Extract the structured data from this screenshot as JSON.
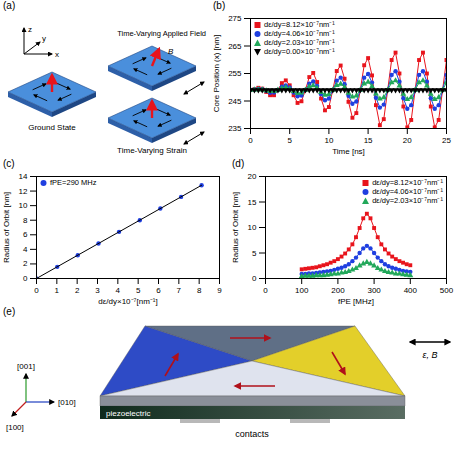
{
  "chart_data": [
    {
      "panel": "(b)",
      "type": "line",
      "xlabel": "Time [ns]",
      "ylabel": "Core Position (x) [nm]",
      "xlim": [
        0,
        25
      ],
      "xticks": [
        0,
        5,
        10,
        15,
        20,
        25
      ],
      "ylim": [
        235,
        275
      ],
      "yticks": [
        235,
        245,
        255,
        265,
        275
      ],
      "grid": false,
      "legend": "upper left",
      "x": [
        0,
        0.5,
        1,
        1.5,
        2,
        2.5,
        3,
        3.5,
        4,
        4.5,
        5,
        5.5,
        6,
        6.5,
        7,
        7.5,
        8,
        8.5,
        9,
        9.5,
        10,
        10.5,
        11,
        11.5,
        12,
        12.5,
        13,
        13.5,
        14,
        14.5,
        15,
        15.5,
        16,
        16.5,
        17,
        17.5,
        18,
        18.5,
        19,
        19.5,
        20,
        20.5,
        21,
        21.5,
        22,
        22.5,
        23,
        23.5,
        24,
        24.5,
        25
      ],
      "series": [
        {
          "name": "dε/dy=8.12×10⁻⁷nm⁻¹",
          "color": "#e8141c",
          "marker": "square",
          "line_style": "solid",
          "values": [
            249,
            249.3,
            249.8,
            249.5,
            248.3,
            247.1,
            247.1,
            249,
            251.5,
            252.5,
            250.7,
            247.1,
            244.3,
            244.9,
            249,
            253.7,
            255.2,
            251.9,
            245.9,
            241.6,
            242.8,
            249,
            255.9,
            257.9,
            253.1,
            244.7,
            238.9,
            240.6,
            249,
            258.0,
            260.6,
            254.3,
            243.5,
            236.2,
            238.4,
            249,
            259.9,
            262.6,
            255.0,
            243.0,
            235.4,
            238.1,
            249,
            259.9,
            262.6,
            255.0,
            243.0,
            235.4,
            238.1,
            249,
            259.9
          ]
        },
        {
          "name": "dε/dy=4.06×10⁻⁷nm⁻¹",
          "color": "#1f3fe0",
          "marker": "circle",
          "line_style": "solid",
          "values": [
            249,
            249.2,
            249.4,
            249.3,
            248.7,
            248.0,
            248.1,
            249,
            250.2,
            250.7,
            249.9,
            248.1,
            246.7,
            247.0,
            249,
            251.3,
            252.1,
            250.5,
            247.5,
            245.3,
            245.9,
            249,
            252.4,
            253.5,
            251.1,
            246.9,
            244.0,
            244.8,
            249,
            253.5,
            254.8,
            251.7,
            246.2,
            242.6,
            243.7,
            249,
            254.5,
            255.8,
            252.0,
            246.0,
            242.2,
            243.5,
            249,
            254.5,
            255.8,
            252.0,
            246.0,
            242.2,
            243.5,
            249,
            254.5
          ]
        },
        {
          "name": "dε/dy=2.03×10⁻⁷nm⁻¹",
          "color": "#22a85a",
          "marker": "triangle",
          "line_style": "solid",
          "values": [
            249,
            249.1,
            249.2,
            249.1,
            248.8,
            248.5,
            248.5,
            249,
            249.6,
            249.9,
            249.4,
            248.5,
            247.8,
            248.0,
            249,
            250.2,
            250.6,
            249.7,
            248.2,
            247.2,
            247.4,
            249,
            250.7,
            251.2,
            250.0,
            247.9,
            246.5,
            246.9,
            249,
            251.3,
            251.9,
            250.3,
            247.6,
            245.8,
            246.3,
            249,
            251.7,
            252.4,
            250.5,
            247.5,
            245.6,
            246.3,
            249,
            251.7,
            252.4,
            250.5,
            247.5,
            245.6,
            246.3,
            249,
            251.7
          ]
        },
        {
          "name": "dε/dy=0.00×10⁻⁷nm⁻¹",
          "color": "#000000",
          "marker": "triangle_down",
          "line_style": "solid",
          "values": [
            249,
            249,
            249,
            249,
            249,
            249,
            249,
            249,
            249,
            249,
            249,
            249,
            249,
            249,
            249,
            249,
            249,
            249,
            249,
            249,
            249,
            249,
            249,
            249,
            249,
            249,
            249,
            249,
            249,
            249,
            249,
            249,
            249,
            249,
            249,
            249,
            249,
            249,
            249,
            249,
            249,
            249,
            249,
            249,
            249,
            249,
            249,
            249,
            249,
            249,
            249
          ]
        }
      ]
    },
    {
      "panel": "(c)",
      "type": "scatter",
      "xlabel": "dε/dy×10⁻⁷[nm⁻¹]",
      "ylabel": "Radius of Orbit [nm]",
      "xlim": [
        0,
        9
      ],
      "xticks": [
        0,
        1,
        2,
        3,
        4,
        5,
        6,
        7,
        8,
        9
      ],
      "ylim": [
        0,
        14
      ],
      "yticks": [
        0,
        2,
        4,
        6,
        8,
        10,
        12,
        14
      ],
      "grid": false,
      "legend": "upper left",
      "x": [
        0,
        1.02,
        2.03,
        3.05,
        4.06,
        5.08,
        6.09,
        7.11,
        8.12
      ],
      "series": [
        {
          "name": "fPE=290 MHz",
          "type": "scatter",
          "color": "#1f3fe0",
          "marker": "circle",
          "values": [
            0,
            1.6,
            3.2,
            4.8,
            6.4,
            8.0,
            9.6,
            11.2,
            12.8
          ]
        },
        {
          "type": "line",
          "color": "#000000",
          "line_style": "solid",
          "x": [
            0,
            8.12
          ],
          "values": [
            0,
            12.8
          ]
        }
      ]
    },
    {
      "panel": "(d)",
      "type": "line",
      "xlabel": "fPE [MHz]",
      "ylabel": "Radius of Orbit [nm]",
      "xlim": [
        0,
        500
      ],
      "xticks": [
        0,
        100,
        200,
        300,
        400,
        500
      ],
      "ylim": [
        0,
        20
      ],
      "yticks": [
        0,
        5,
        10,
        15,
        20
      ],
      "grid": false,
      "legend": "upper right",
      "x": [
        100,
        110,
        120,
        130,
        140,
        150,
        160,
        170,
        180,
        190,
        200,
        210,
        220,
        230,
        240,
        250,
        260,
        270,
        280,
        290,
        300,
        310,
        320,
        330,
        340,
        350,
        360,
        370,
        380,
        390,
        400
      ],
      "series": [
        {
          "name": "dε/dy=8.12×10⁻⁷nm⁻¹",
          "color": "#e8141c",
          "marker": "square",
          "line_style": "solid",
          "values": [
            1.8,
            1.9,
            2.0,
            2.1,
            2.2,
            2.4,
            2.6,
            2.8,
            3.1,
            3.4,
            3.8,
            4.3,
            4.9,
            5.7,
            6.7,
            8.1,
            9.9,
            11.8,
            12.7,
            11.8,
            9.9,
            8.1,
            6.7,
            5.7,
            4.9,
            4.3,
            3.8,
            3.4,
            3.1,
            2.8,
            2.6
          ]
        },
        {
          "name": "dε/dy=4.06×10⁻⁷nm⁻¹",
          "color": "#1f3fe0",
          "marker": "circle",
          "line_style": "solid",
          "values": [
            0.9,
            0.9,
            1.0,
            1.0,
            1.1,
            1.2,
            1.3,
            1.4,
            1.5,
            1.7,
            1.9,
            2.1,
            2.4,
            2.8,
            3.4,
            4.1,
            5.0,
            5.9,
            6.4,
            5.9,
            5.0,
            4.1,
            3.4,
            2.8,
            2.4,
            2.1,
            1.9,
            1.7,
            1.5,
            1.4,
            1.3
          ]
        },
        {
          "name": "dε/dy=2.03×10⁻⁷nm⁻¹",
          "color": "#22a85a",
          "marker": "triangle",
          "line_style": "solid",
          "values": [
            0.4,
            0.5,
            0.5,
            0.5,
            0.6,
            0.6,
            0.6,
            0.7,
            0.8,
            0.9,
            0.9,
            1.1,
            1.2,
            1.4,
            1.7,
            2.0,
            2.5,
            2.9,
            3.2,
            2.9,
            2.5,
            2.0,
            1.7,
            1.4,
            1.2,
            1.1,
            0.9,
            0.9,
            0.8,
            0.7,
            0.6
          ]
        }
      ]
    }
  ],
  "diagrams": [
    {
      "panel": "(a)",
      "axes": [
        "z",
        "y",
        "x"
      ],
      "states": [
        "Ground State",
        "Time-Varying Applied Field",
        "Time-Varying Strain"
      ],
      "field": "B"
    },
    {
      "panel": "(e)",
      "axes": [
        "[001]",
        "[010]",
        "[100]"
      ],
      "drive": "ε, B",
      "layers": [
        "piezoelectric",
        "contacts"
      ]
    }
  ]
}
